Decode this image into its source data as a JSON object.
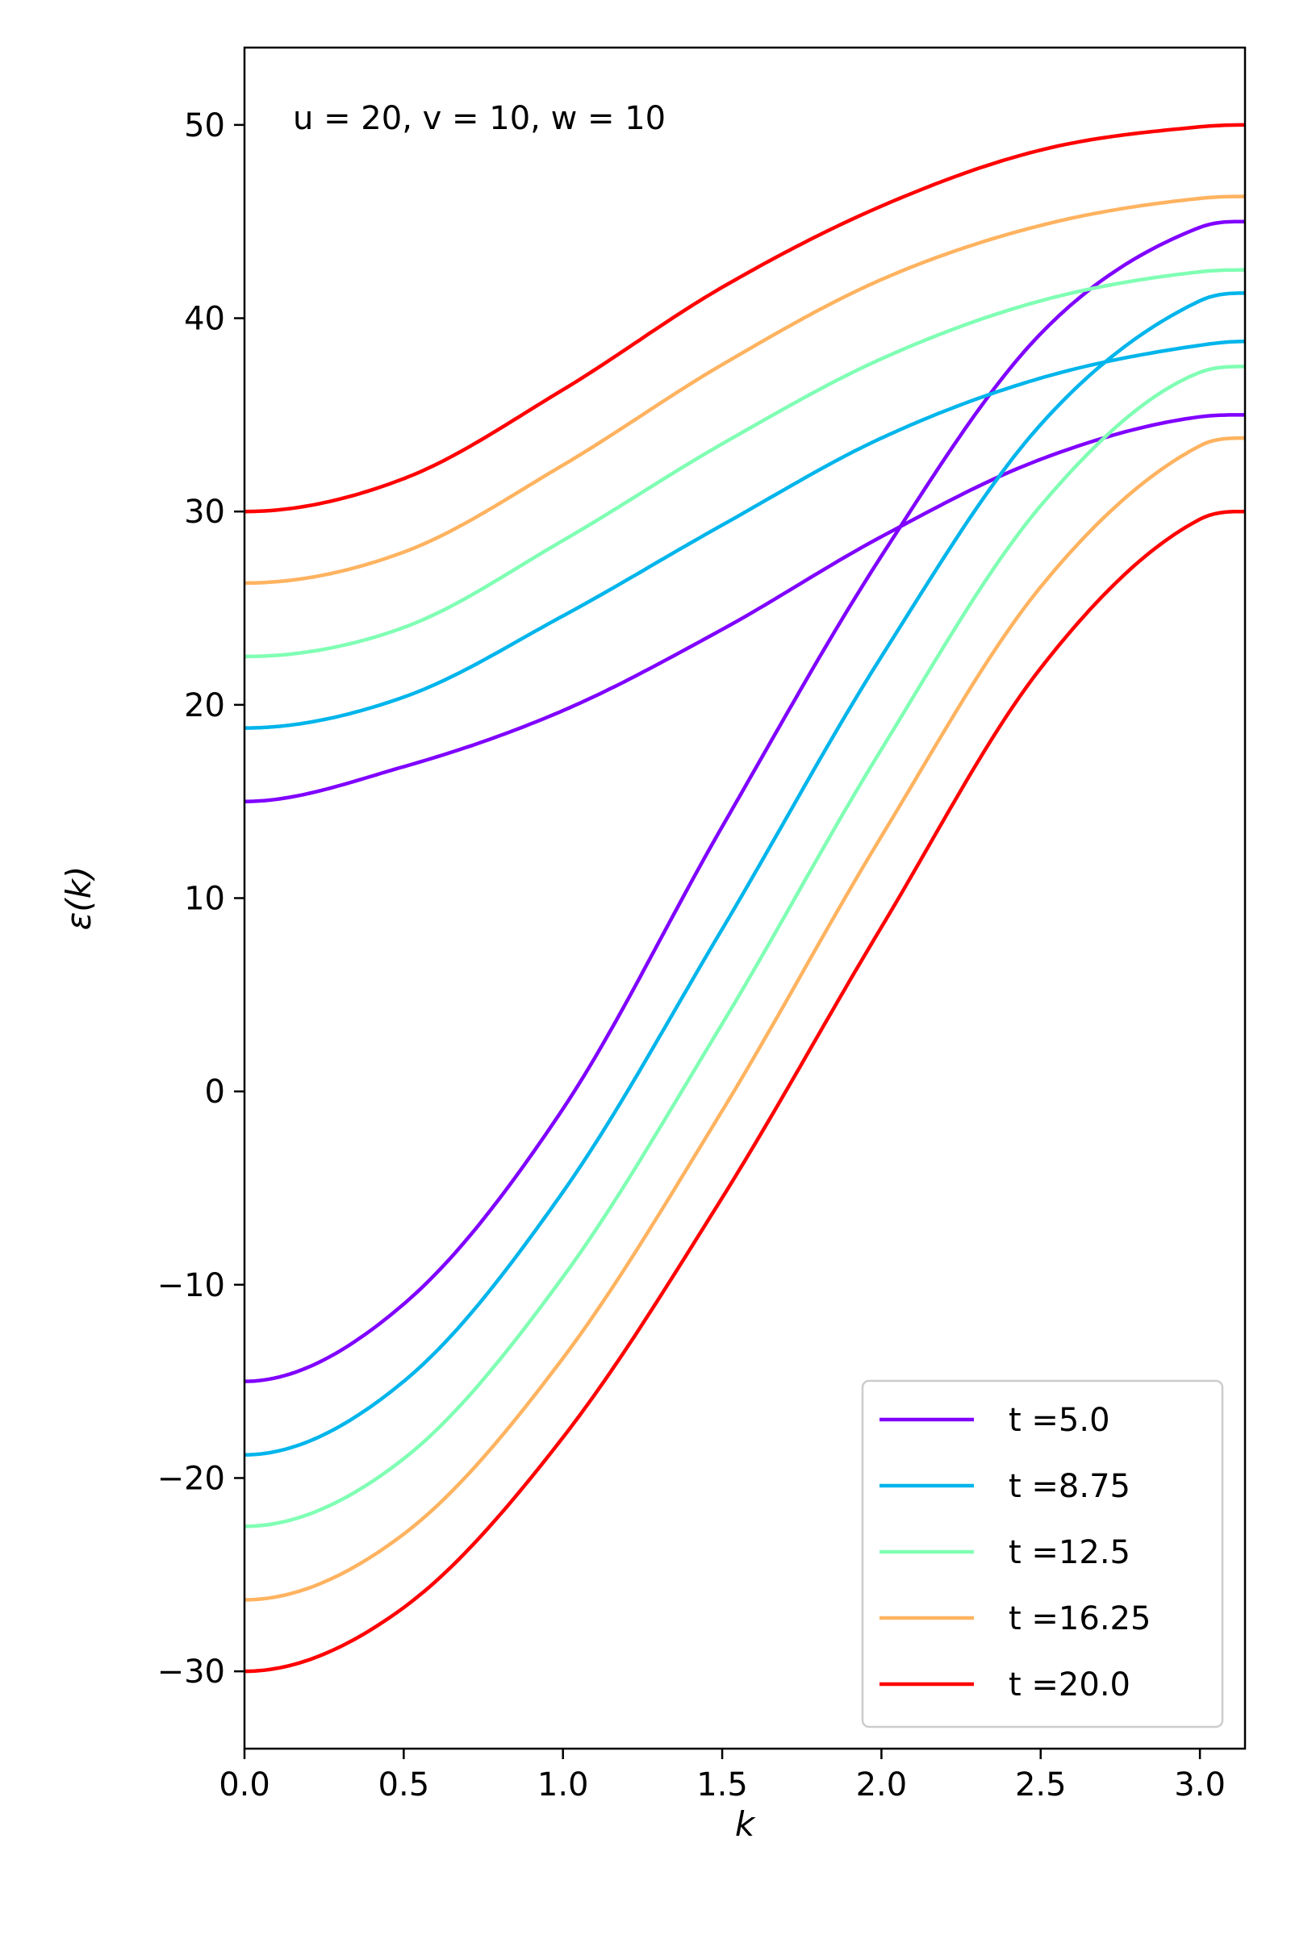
{
  "chart_data": {
    "type": "line",
    "xlabel": "k",
    "ylabel": "ε(k)",
    "annotation": "u = 20, v = 10, w = 10",
    "xlim": [
      0,
      3.14159
    ],
    "ylim": [
      -34,
      54
    ],
    "xticks": [
      0.0,
      0.5,
      1.0,
      1.5,
      2.0,
      2.5,
      3.0
    ],
    "xtick_labels": [
      "0.0",
      "0.5",
      "1.0",
      "1.5",
      "2.0",
      "2.5",
      "3.0"
    ],
    "yticks": [
      -30,
      -20,
      -10,
      0,
      10,
      20,
      30,
      40,
      50
    ],
    "ytick_labels": [
      "−30",
      "−20",
      "−10",
      "0",
      "10",
      "20",
      "30",
      "40",
      "50"
    ],
    "grid": false,
    "legend_position": "bottom-right",
    "series": [
      {
        "name": "t =5.0",
        "color": "#8000ff",
        "upper": {
          "k": [
            0,
            0.5,
            1.0,
            1.5,
            2.0,
            2.5,
            3.0,
            3.14
          ],
          "e": [
            15.0,
            16.8,
            19.7,
            23.9,
            28.7,
            32.7,
            34.9,
            35.0
          ]
        },
        "lower": {
          "k": [
            0,
            0.5,
            1.0,
            1.5,
            2.0,
            2.5,
            3.0,
            3.14
          ],
          "e": [
            -15.0,
            -11.0,
            -0.9,
            13.7,
            27.7,
            39.2,
            44.7,
            45.0
          ]
        }
      },
      {
        "name": "t =8.75",
        "color": "#00b5eb",
        "upper": {
          "k": [
            0,
            0.5,
            1.0,
            1.5,
            2.0,
            2.5,
            3.0,
            3.14
          ],
          "e": [
            18.8,
            20.4,
            24.6,
            29.3,
            33.8,
            36.9,
            38.6,
            38.8
          ]
        },
        "lower": {
          "k": [
            0,
            0.5,
            1.0,
            1.5,
            2.0,
            2.5,
            3.0,
            3.14
          ],
          "e": [
            -18.8,
            -15.0,
            -5.2,
            8.4,
            22.5,
            34.5,
            40.9,
            41.3
          ]
        }
      },
      {
        "name": "t =12.5",
        "color": "#80ffb4",
        "upper": {
          "k": [
            0,
            0.5,
            1.0,
            1.5,
            2.0,
            2.5,
            3.0,
            3.14
          ],
          "e": [
            22.5,
            24.0,
            28.5,
            33.5,
            37.9,
            40.9,
            42.4,
            42.5
          ]
        },
        "lower": {
          "k": [
            0,
            0.5,
            1.0,
            1.5,
            2.0,
            2.5,
            3.0,
            3.14
          ],
          "e": [
            -22.5,
            -19.0,
            -9.6,
            3.5,
            17.7,
            30.3,
            37.2,
            37.5
          ]
        }
      },
      {
        "name": "t =16.25",
        "color": "#ffb360",
        "upper": {
          "k": [
            0,
            0.5,
            1.0,
            1.5,
            2.0,
            2.5,
            3.0,
            3.14
          ],
          "e": [
            26.3,
            27.9,
            32.4,
            37.6,
            42.0,
            44.8,
            46.2,
            46.3
          ]
        },
        "lower": {
          "k": [
            0,
            0.5,
            1.0,
            1.5,
            2.0,
            2.5,
            3.0,
            3.14
          ],
          "e": [
            -26.3,
            -22.9,
            -13.8,
            -1.0,
            13.2,
            26.1,
            33.4,
            33.8
          ]
        }
      },
      {
        "name": "t =20.0",
        "color": "#ff0000",
        "upper": {
          "k": [
            0,
            0.5,
            1.0,
            1.5,
            2.0,
            2.5,
            3.0,
            3.14
          ],
          "e": [
            30.0,
            31.7,
            36.3,
            41.6,
            45.8,
            48.7,
            49.9,
            50.0
          ]
        },
        "lower": {
          "k": [
            0,
            0.5,
            1.0,
            1.5,
            2.0,
            2.5,
            3.0,
            3.14
          ],
          "e": [
            -30.0,
            -26.7,
            -17.9,
            -5.5,
            8.5,
            21.9,
            29.6,
            30.0
          ]
        }
      }
    ]
  }
}
